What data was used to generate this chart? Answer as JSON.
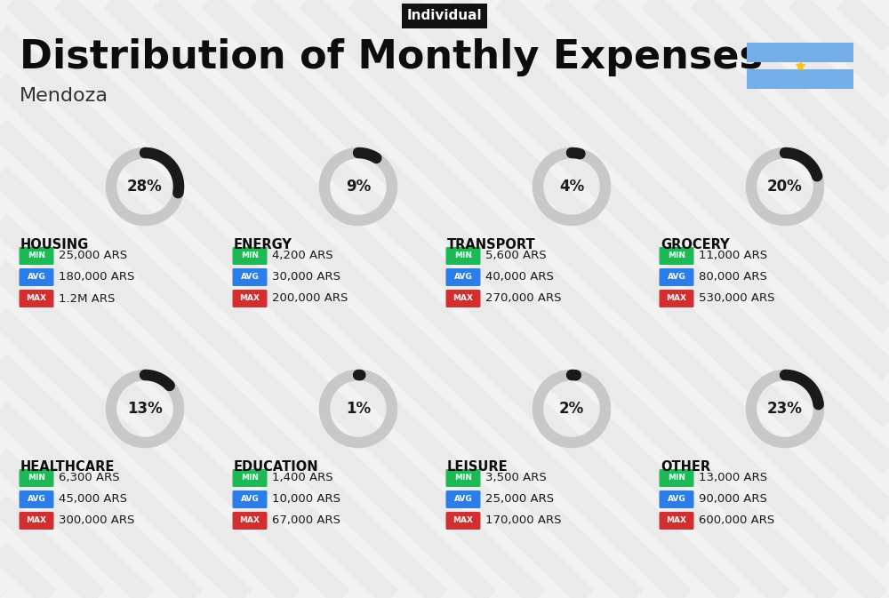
{
  "title": "Distribution of Monthly Expenses",
  "subtitle": "Individual",
  "location": "Mendoza",
  "bg_color": "#f2f2f2",
  "categories": [
    {
      "name": "HOUSING",
      "percent": 28,
      "min": "25,000 ARS",
      "avg": "180,000 ARS",
      "max": "1.2M ARS",
      "row": 0,
      "col": 0
    },
    {
      "name": "ENERGY",
      "percent": 9,
      "min": "4,200 ARS",
      "avg": "30,000 ARS",
      "max": "200,000 ARS",
      "row": 0,
      "col": 1
    },
    {
      "name": "TRANSPORT",
      "percent": 4,
      "min": "5,600 ARS",
      "avg": "40,000 ARS",
      "max": "270,000 ARS",
      "row": 0,
      "col": 2
    },
    {
      "name": "GROCERY",
      "percent": 20,
      "min": "11,000 ARS",
      "avg": "80,000 ARS",
      "max": "530,000 ARS",
      "row": 0,
      "col": 3
    },
    {
      "name": "HEALTHCARE",
      "percent": 13,
      "min": "6,300 ARS",
      "avg": "45,000 ARS",
      "max": "300,000 ARS",
      "row": 1,
      "col": 0
    },
    {
      "name": "EDUCATION",
      "percent": 1,
      "min": "1,400 ARS",
      "avg": "10,000 ARS",
      "max": "67,000 ARS",
      "row": 1,
      "col": 1
    },
    {
      "name": "LEISURE",
      "percent": 2,
      "min": "3,500 ARS",
      "avg": "25,000 ARS",
      "max": "170,000 ARS",
      "row": 1,
      "col": 2
    },
    {
      "name": "OTHER",
      "percent": 23,
      "min": "13,000 ARS",
      "avg": "90,000 ARS",
      "max": "600,000 ARS",
      "row": 1,
      "col": 3
    }
  ],
  "min_color": "#1db954",
  "avg_color": "#2b7de9",
  "max_color": "#d32f2f",
  "arc_color": "#1a1a1a",
  "arc_bg_color": "#c8c8c8",
  "stripe_color": "#e6e6e6",
  "flag_blue": "#74aee8",
  "flag_white": "#ffffff",
  "sun_color": "#f5c518"
}
